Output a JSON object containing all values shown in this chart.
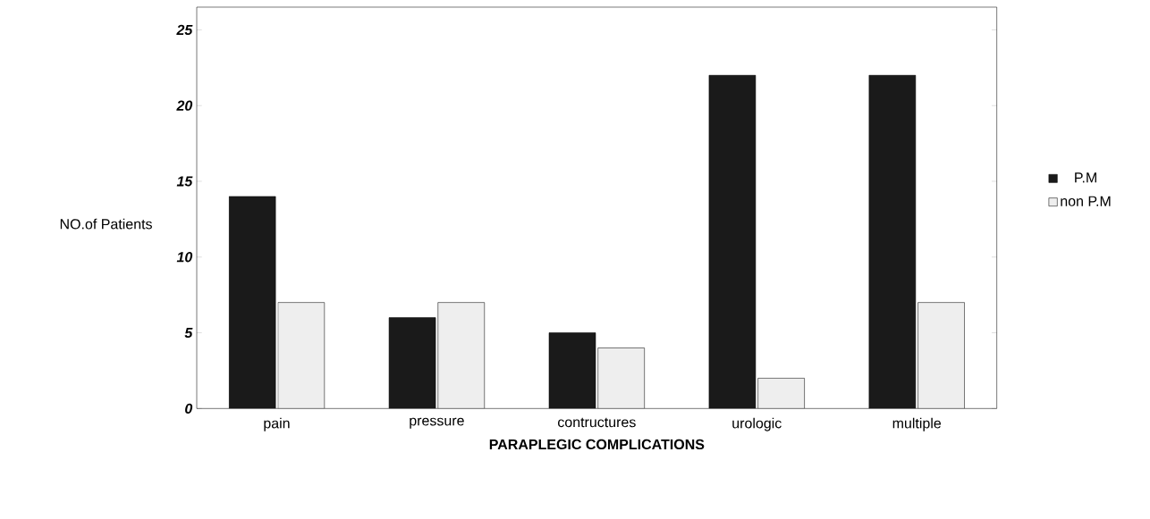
{
  "chart_data": {
    "type": "bar",
    "xlabel": "PARAPLEGIC COMPLICATIONS",
    "ylabel": "NO.of Patients",
    "categories": [
      "pain",
      "pressure",
      "contructures",
      "urologic",
      "multiple"
    ],
    "series": [
      {
        "name": "P.M",
        "color": "#1a1a1a",
        "values": [
          14,
          6,
          5,
          22,
          22
        ]
      },
      {
        "name": "non P.M",
        "color": "#eeeeee",
        "values": [
          7,
          7,
          4,
          2,
          7
        ]
      }
    ],
    "ylim": [
      0,
      26.5
    ],
    "yticks": [
      0,
      5,
      10,
      15,
      20,
      25
    ],
    "legend": "right"
  }
}
